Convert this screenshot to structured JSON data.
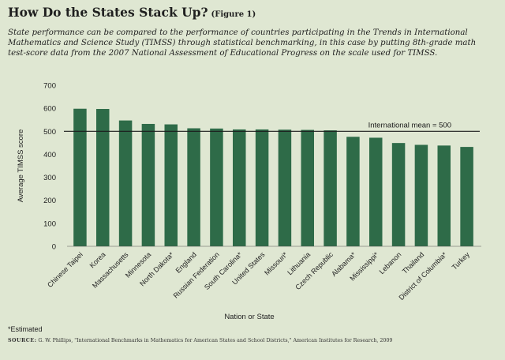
{
  "header": {
    "title": "How Do the States Stack Up?",
    "figure_label": "(Figure 1)",
    "description": "State performance can be compared to the performance of countries participating in the Trends in International Mathematics and Science Study (TIMSS) through statistical benchmarking, in this case by putting 8th-grade math test-score data from the 2007 National Assessment of Educational Progress on the scale used for TIMSS."
  },
  "footer": {
    "note": "*Estimated",
    "source_label": "SOURCE:",
    "source_text": "G. W. Phillips, \"International Benchmarks in Mathematics for American States and School Districts,\" American Institutes for Research, 2009"
  },
  "colors": {
    "background": "#dfe7d2",
    "bar": "#2e6b48",
    "text": "#222222"
  },
  "chart_data": {
    "type": "bar",
    "title": "",
    "xlabel": "Nation or State",
    "ylabel": "Average TIMSS score",
    "ylim": [
      0,
      700
    ],
    "yticks": [
      0,
      100,
      200,
      300,
      400,
      500,
      600,
      700
    ],
    "grid": false,
    "categories": [
      "Chinese Taipei",
      "Korea",
      "Massachusetts",
      "Minnesota",
      "North Dakota*",
      "England",
      "Russian Federation",
      "South Carolina*",
      "United States",
      "Missouri*",
      "Lithuania",
      "Czech Republic",
      "Alabama*",
      "Mississippi*",
      "Lebanon",
      "Thailand",
      "District of Columbia*",
      "Turkey"
    ],
    "values": [
      598,
      597,
      547,
      532,
      530,
      513,
      512,
      508,
      508,
      507,
      506,
      504,
      476,
      472,
      449,
      441,
      438,
      432
    ],
    "reference_line": {
      "value": 500,
      "label": "International mean = 500"
    }
  }
}
